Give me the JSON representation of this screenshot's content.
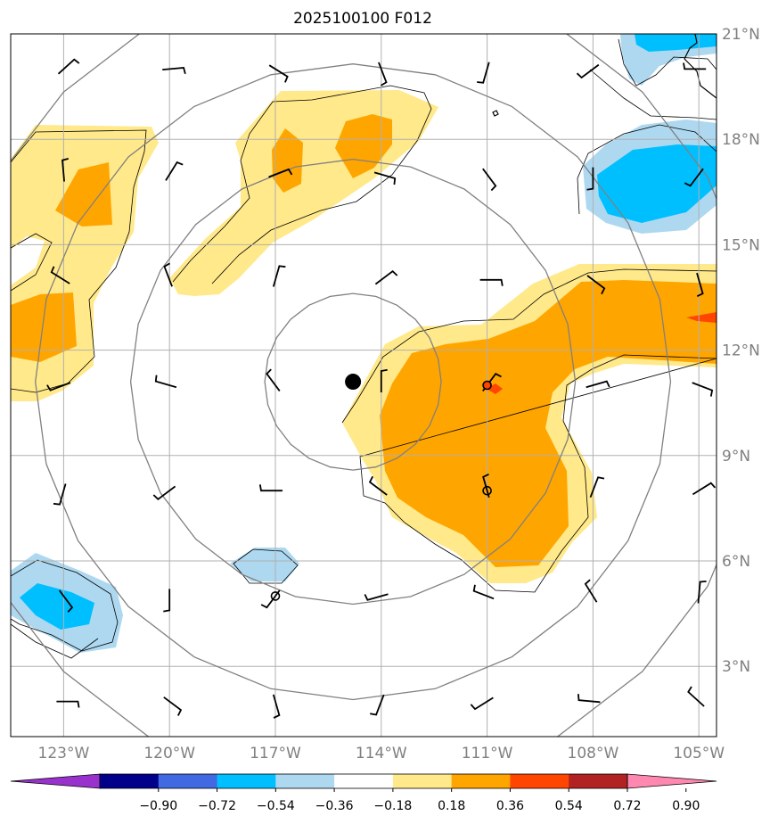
{
  "title": "2025100100 F012",
  "map": {
    "lon_range": [
      -124.5,
      -104.5
    ],
    "lat_range": [
      1.0,
      21.0
    ],
    "lat_ticks": [
      {
        "value": 3,
        "label": "3°N"
      },
      {
        "value": 6,
        "label": "6°N"
      },
      {
        "value": 9,
        "label": "9°N"
      },
      {
        "value": 12,
        "label": "12°N"
      },
      {
        "value": 15,
        "label": "15°N"
      },
      {
        "value": 18,
        "label": "18°N"
      },
      {
        "value": 21,
        "label": "21°N"
      }
    ],
    "lon_ticks": [
      {
        "value": -123,
        "label": "123°W"
      },
      {
        "value": -120,
        "label": "120°W"
      },
      {
        "value": -117,
        "label": "117°W"
      },
      {
        "value": -114,
        "label": "114°W"
      },
      {
        "value": -111,
        "label": "111°W"
      },
      {
        "value": -108,
        "label": "108°W"
      },
      {
        "value": -105,
        "label": "105°W"
      }
    ],
    "grid": true,
    "storm_center": {
      "lon": -114.8,
      "lat": 11.1
    },
    "range_rings_deg": [
      2.5,
      6.3,
      9.0,
      11.6
    ],
    "markers": [
      {
        "lon": -111.0,
        "lat": 11.0,
        "highlight": true
      },
      {
        "lon": -111.0,
        "lat": 8.0,
        "highlight": false
      },
      {
        "lon": -117.0,
        "lat": 5.0,
        "highlight": false
      }
    ]
  },
  "colorbar": {
    "levels": [
      "−0.90",
      "−0.72",
      "−0.54",
      "−0.36",
      "−0.18",
      "0.18",
      "0.36",
      "0.54",
      "0.72",
      "0.90"
    ],
    "colors": [
      "#9932cc",
      "#00008b",
      "#4169e1",
      "#00bfff",
      "#add8f0",
      "#ffffff",
      "#ffe98a",
      "#ffa500",
      "#ff4500",
      "#b22222",
      "#ff88b0"
    ],
    "extend": "both"
  }
}
